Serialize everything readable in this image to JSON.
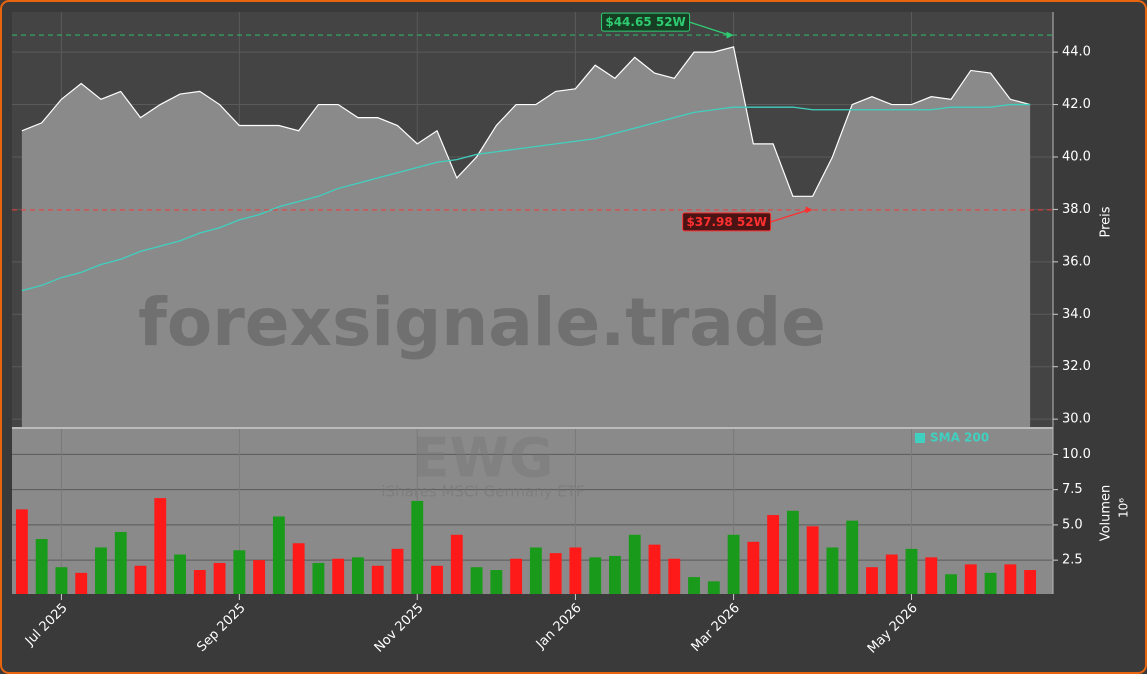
{
  "chart_data": [
    {
      "type": "area",
      "watermark": "forexsignale.trade",
      "ylabel": "Preis",
      "ylim": [
        29.7,
        45.53
      ],
      "yticks": [
        {
          "value": 30,
          "label": "30.0"
        },
        {
          "value": 32,
          "label": "32.0"
        },
        {
          "value": 34,
          "label": "34.0"
        },
        {
          "value": 36,
          "label": "36.0"
        },
        {
          "value": 38,
          "label": "38.0"
        },
        {
          "value": 40,
          "label": "40.0"
        },
        {
          "value": 42,
          "label": "42.0"
        },
        {
          "value": 44,
          "label": "44.0"
        }
      ],
      "grid": true,
      "legend": "top-right",
      "series": [
        {
          "name": "EWG",
          "color": "#ffffff",
          "values": [
            41.0,
            41.3,
            42.2,
            42.8,
            42.2,
            42.5,
            41.5,
            42.0,
            42.4,
            42.5,
            42.0,
            41.2,
            41.2,
            41.2,
            41.0,
            42.0,
            42.0,
            41.5,
            41.5,
            41.2,
            40.5,
            41.0,
            39.2,
            40.0,
            41.2,
            42.0,
            42.0,
            42.5,
            42.6,
            43.5,
            43.0,
            43.8,
            43.2,
            43.0,
            44.0,
            44.0,
            44.2,
            40.5,
            40.5,
            38.5,
            38.5,
            40.0,
            42.0,
            42.3,
            42.0,
            42.0,
            42.3,
            42.2,
            43.3,
            43.2,
            42.2,
            42.0
          ]
        },
        {
          "name": "SMA 200",
          "color": "#40d0c0",
          "values": [
            34.9,
            35.1,
            35.4,
            35.6,
            35.9,
            36.1,
            36.4,
            36.6,
            36.8,
            37.1,
            37.3,
            37.6,
            37.8,
            38.1,
            38.3,
            38.5,
            38.8,
            39.0,
            39.2,
            39.4,
            39.6,
            39.8,
            39.9,
            40.1,
            40.2,
            40.3,
            40.4,
            40.5,
            40.6,
            40.7,
            40.9,
            41.1,
            41.3,
            41.5,
            41.7,
            41.8,
            41.9,
            41.9,
            41.9,
            41.9,
            41.8,
            41.8,
            41.8,
            41.8,
            41.8,
            41.8,
            41.8,
            41.9,
            41.9,
            41.9,
            42.0,
            42.0
          ]
        }
      ],
      "annotations": [
        {
          "value": 44.65,
          "label": "$44.65 52W",
          "color": "#2ecc71",
          "at": 36
        },
        {
          "value": 37.98,
          "label": "$37.98 52W",
          "color": "#ff3030",
          "at": 40
        }
      ]
    },
    {
      "type": "bar",
      "title": "EWG",
      "subtitle": "iShares MSCI Germany ETF",
      "ylabel": "Volumen",
      "yunit": "10⁶",
      "ylim": [
        0.1,
        11.8
      ],
      "yticks": [
        2.5,
        {
          "value": 5,
          "label": "5.0"
        },
        {
          "value": 7.5,
          "label": "7.5"
        },
        {
          "value": 10,
          "label": "10.0"
        }
      ],
      "grid": true,
      "categories": [
        null,
        null,
        "Jul 2025",
        null,
        null,
        null,
        null,
        null,
        null,
        null,
        null,
        "Sep 2025",
        null,
        null,
        null,
        null,
        null,
        null,
        null,
        null,
        "Nov 2025",
        null,
        null,
        null,
        null,
        null,
        null,
        null,
        "Jan 2026",
        null,
        null,
        null,
        null,
        null,
        null,
        null,
        "Mar 2026",
        null,
        null,
        null,
        null,
        null,
        null,
        null,
        null,
        "May 2026",
        null,
        null,
        null,
        null,
        null,
        null
      ],
      "values": [
        6.1,
        4.0,
        2.0,
        1.6,
        3.4,
        4.5,
        2.1,
        6.9,
        2.9,
        1.8,
        2.3,
        3.2,
        2.5,
        5.6,
        3.7,
        2.3,
        2.6,
        2.7,
        2.1,
        3.3,
        6.7,
        2.1,
        4.3,
        2.0,
        1.8,
        2.6,
        3.4,
        3.0,
        3.4,
        2.7,
        2.8,
        4.3,
        3.6,
        2.6,
        1.3,
        1.0,
        4.3,
        3.8,
        5.7,
        6.0,
        4.9,
        3.4,
        5.3,
        2.0,
        2.9,
        3.3,
        2.7,
        1.5,
        2.2,
        1.6,
        2.2,
        1.8
      ],
      "colors": [
        "#ff1a1a",
        "#1a9a1a",
        "#1a9a1a",
        "#ff1a1a",
        "#1a9a1a",
        "#1a9a1a",
        "#ff1a1a",
        "#ff1a1a",
        "#1a9a1a",
        "#ff1a1a",
        "#ff1a1a",
        "#1a9a1a",
        "#ff1a1a",
        "#1a9a1a",
        "#ff1a1a",
        "#1a9a1a",
        "#ff1a1a",
        "#1a9a1a",
        "#ff1a1a",
        "#ff1a1a",
        "#1a9a1a",
        "#ff1a1a",
        "#ff1a1a",
        "#1a9a1a",
        "#1a9a1a",
        "#ff1a1a",
        "#1a9a1a",
        "#ff1a1a",
        "#ff1a1a",
        "#1a9a1a",
        "#1a9a1a",
        "#1a9a1a",
        "#ff1a1a",
        "#ff1a1a",
        "#1a9a1a",
        "#1a9a1a",
        "#1a9a1a",
        "#ff1a1a",
        "#ff1a1a",
        "#1a9a1a",
        "#ff1a1a",
        "#1a9a1a",
        "#1a9a1a",
        "#ff1a1a",
        "#ff1a1a",
        "#1a9a1a",
        "#ff1a1a",
        "#1a9a1a",
        "#ff1a1a",
        "#1a9a1a",
        "#ff1a1a",
        "#ff1a1a"
      ]
    }
  ]
}
